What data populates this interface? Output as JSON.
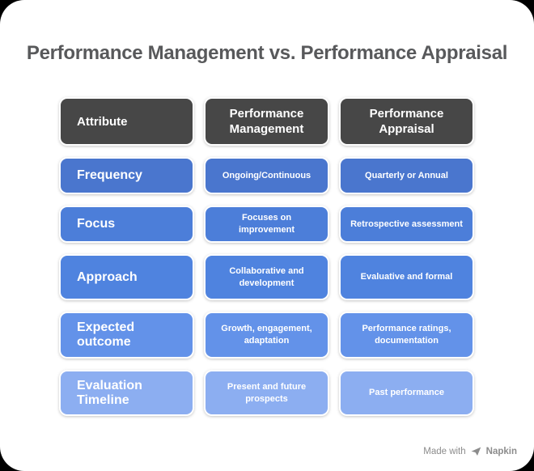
{
  "title": "Performance Management vs. Performance Appraisal",
  "table": {
    "headers": [
      "Attribute",
      "Performance Management",
      "Performance Appraisal"
    ],
    "rows": [
      {
        "attribute": "Frequency",
        "management": "Ongoing/Continuous",
        "appraisal": "Quarterly or Annual",
        "color": "#4a76ce"
      },
      {
        "attribute": "Focus",
        "management": "Focuses on improvement",
        "appraisal": "Retrospective assessment",
        "color": "#4c7ed9"
      },
      {
        "attribute": "Approach",
        "management": "Collaborative and development",
        "appraisal": "Evaluative and formal",
        "color": "#4f83df"
      },
      {
        "attribute": "Expected outcome",
        "management": "Growth, engagement, adaptation",
        "appraisal": "Performance ratings, documentation",
        "color": "#6392e9"
      },
      {
        "attribute": "Evaluation Timeline",
        "management": "Present and future prospects",
        "appraisal": "Past performance",
        "color": "#8caef1"
      }
    ]
  },
  "watermark": {
    "prefix": "Made with",
    "brand": "Napkin"
  },
  "colors": {
    "page_bg": "#000000",
    "card_bg": "#ffffff",
    "title_color": "#58595b",
    "header_bg": "#474747",
    "cell_text": "#ffffff",
    "watermark_color": "#8c8c8c"
  }
}
